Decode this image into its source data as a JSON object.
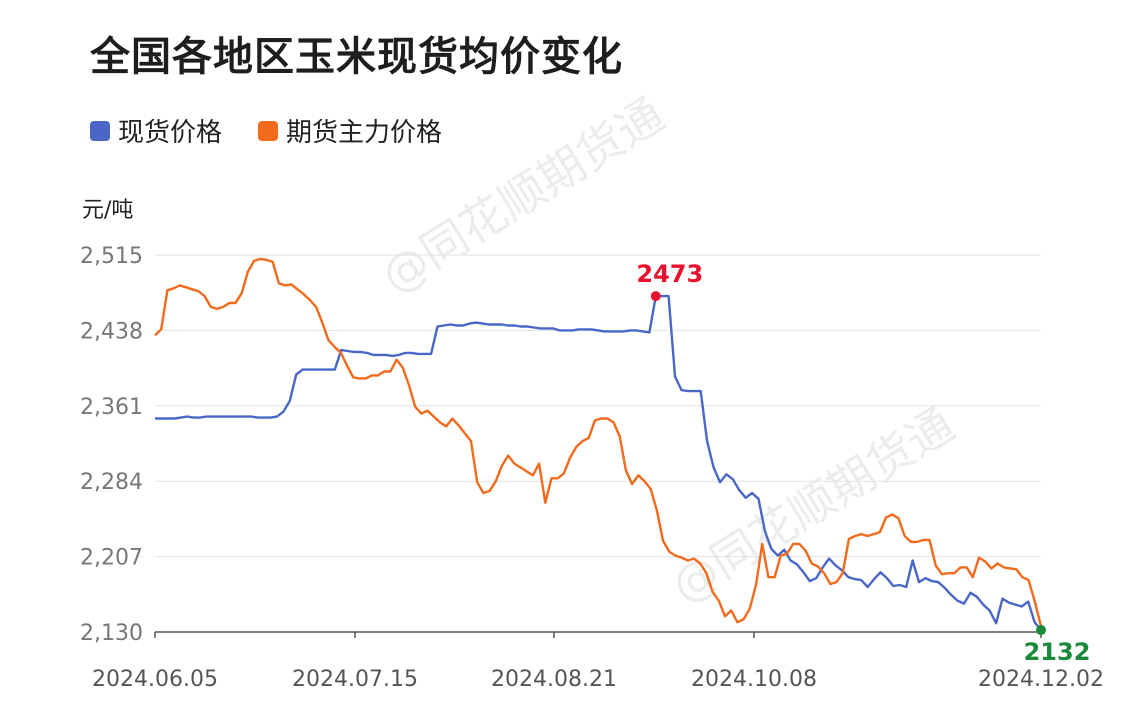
{
  "title": "全国各地区玉米现货均价变化",
  "watermark": "@同花顺期货通",
  "chart_data": {
    "type": "line",
    "title": "全国各地区玉米现货均价变化",
    "ylabel": "元/吨",
    "ylim": [
      2130,
      2515
    ],
    "yticks": [
      "2,515",
      "2,438",
      "2,361",
      "2,284",
      "2,207",
      "2,130"
    ],
    "ytick_values": [
      2515,
      2438,
      2361,
      2284,
      2207,
      2130
    ],
    "xticks": [
      "2024.06.05",
      "2024.07.15",
      "2024.08.21",
      "2024.10.08",
      "2024.12.02"
    ],
    "grid": true,
    "legend_position": "top-left",
    "colors": {
      "spot": "#4a67c8",
      "futures": "#f26a1b",
      "max_marker": "#e8102c",
      "min_marker": "#1a8a3a"
    },
    "series": [
      {
        "name": "现货价格",
        "color": "#4a67c8",
        "values": [
          2348,
          2348,
          2348,
          2348,
          2349,
          2350,
          2349,
          2349,
          2350,
          2350,
          2350,
          2350,
          2350,
          2350,
          2350,
          2350,
          2349,
          2349,
          2349,
          2350,
          2355,
          2366,
          2393,
          2398,
          2398,
          2398,
          2398,
          2398,
          2398,
          2418,
          2417,
          2416,
          2416,
          2415,
          2413,
          2413,
          2413,
          2412,
          2413,
          2415,
          2415,
          2414,
          2414,
          2414,
          2442,
          2443,
          2444,
          2443,
          2443,
          2445,
          2446,
          2445,
          2444,
          2444,
          2444,
          2443,
          2443,
          2442,
          2442,
          2441,
          2440,
          2440,
          2440,
          2438,
          2438,
          2438,
          2439,
          2439,
          2439,
          2438,
          2437,
          2437,
          2437,
          2437,
          2438,
          2438,
          2437,
          2436,
          2473,
          2473,
          2473,
          2391,
          2377,
          2376,
          2376,
          2376,
          2325,
          2298,
          2283,
          2291,
          2286,
          2275,
          2267,
          2272,
          2266,
          2233,
          2215,
          2208,
          2214,
          2203,
          2199,
          2191,
          2182,
          2185,
          2196,
          2205,
          2198,
          2193,
          2186,
          2184,
          2183,
          2176,
          2184,
          2191,
          2185,
          2177,
          2178,
          2176,
          2203,
          2181,
          2185,
          2182,
          2181,
          2175,
          2168,
          2162,
          2159,
          2170,
          2166,
          2158,
          2152,
          2139,
          2164,
          2160,
          2158,
          2156,
          2161,
          2140,
          2132
        ],
        "max_label": "2473"
      },
      {
        "name": "期货主力价格",
        "color": "#f26a1b",
        "values": [
          2433,
          2439,
          2479,
          2481,
          2484,
          2482,
          2480,
          2478,
          2473,
          2462,
          2460,
          2462,
          2466,
          2466,
          2476,
          2498,
          2509,
          2511,
          2510,
          2508,
          2486,
          2484,
          2485,
          2480,
          2475,
          2469,
          2462,
          2446,
          2428,
          2421,
          2415,
          2402,
          2390,
          2389,
          2389,
          2392,
          2392,
          2396,
          2396,
          2408,
          2400,
          2382,
          2360,
          2353,
          2356,
          2350,
          2344,
          2340,
          2348,
          2341,
          2333,
          2325,
          2283,
          2272,
          2274,
          2284,
          2300,
          2310,
          2302,
          2298,
          2294,
          2290,
          2302,
          2262,
          2287,
          2287,
          2292,
          2308,
          2319,
          2325,
          2328,
          2346,
          2348,
          2348,
          2344,
          2330,
          2295,
          2281,
          2290,
          2284,
          2276,
          2254,
          2223,
          2212,
          2208,
          2206,
          2203,
          2205,
          2200,
          2190,
          2171,
          2162,
          2146,
          2152,
          2140,
          2143,
          2154,
          2178,
          2220,
          2186,
          2186,
          2208,
          2210,
          2220,
          2220,
          2213,
          2200,
          2197,
          2190,
          2179,
          2181,
          2190,
          2225,
          2228,
          2230,
          2228,
          2230,
          2232,
          2247,
          2250,
          2246,
          2228,
          2222,
          2222,
          2224,
          2224,
          2198,
          2189,
          2190,
          2190,
          2196,
          2196,
          2186,
          2206,
          2202,
          2195,
          2200,
          2196,
          2195,
          2194,
          2186,
          2183,
          2161,
          2136
        ],
        "min_label": "2132"
      }
    ]
  }
}
